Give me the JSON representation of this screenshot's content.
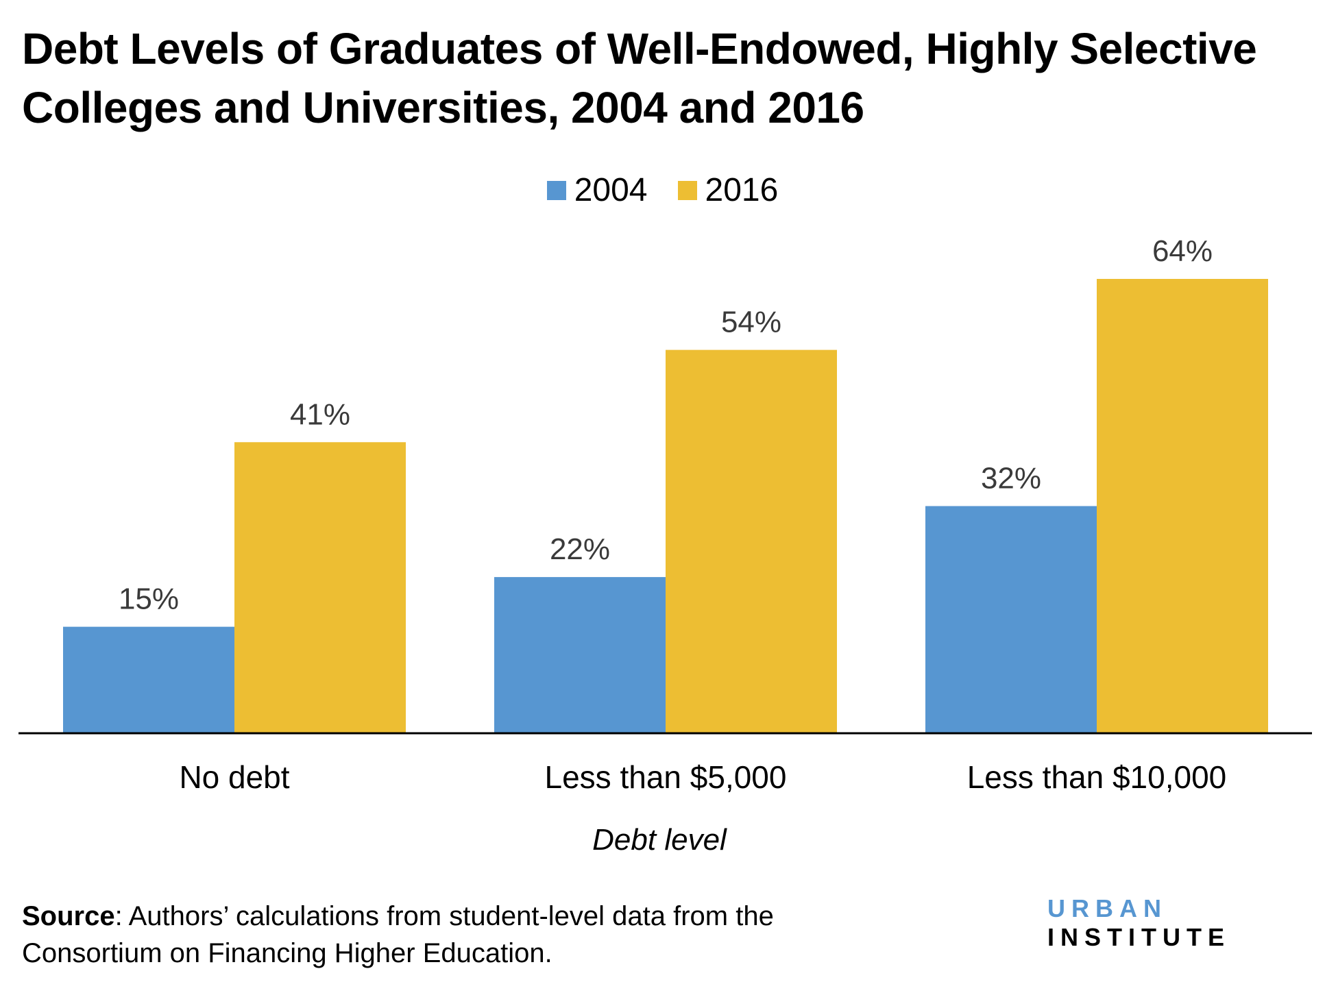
{
  "chart_data": {
    "type": "bar",
    "title": "Debt Levels of Graduates of Well-Endowed, Highly Selective Colleges and Universities, 2004 and 2016",
    "categories": [
      "No debt",
      "Less than $5,000",
      "Less than $10,000"
    ],
    "series": [
      {
        "name": "2004",
        "values": [
          15,
          22,
          32
        ],
        "labels": [
          "15%",
          "22%",
          "32%"
        ],
        "color": "#5796D1"
      },
      {
        "name": "2016",
        "values": [
          41,
          54,
          64
        ],
        "labels": [
          "41%",
          "54%",
          "64%"
        ],
        "color": "#EDBE33"
      }
    ],
    "xlabel": "Debt level",
    "ylabel": "",
    "ylim": [
      0,
      64
    ],
    "grid": false,
    "legend": "top-center"
  },
  "source": {
    "label": "Source",
    "text": ": Authors’ calculations from student-level data from the",
    "text2": "Consortium on Financing Higher Education."
  },
  "logo": {
    "part1": "URBAN",
    "part2": "INSTITUTE",
    "color1": "#5796D1"
  }
}
